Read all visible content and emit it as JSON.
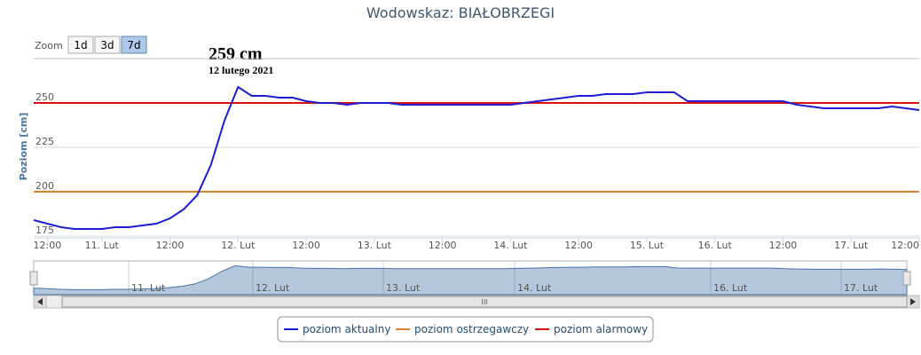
{
  "chart_data": {
    "type": "line",
    "title": "Wodowskaz: BIAŁOBRZEGI",
    "zoom": {
      "label": "Zoom",
      "buttons": [
        "1d",
        "3d",
        "7d"
      ],
      "selected": "7d"
    },
    "annotation": {
      "value_label": "259 cm",
      "date": "12 lutego 2021"
    },
    "y_label": "Poziom [cm]",
    "ylim": [
      174,
      275
    ],
    "yticks": [
      175,
      200,
      225,
      250
    ],
    "grid": true,
    "categories": [
      null,
      "12:00",
      null,
      null,
      null,
      "11. Lut",
      null,
      null,
      null,
      null,
      "12:00",
      null,
      null,
      null,
      null,
      "12. Lut",
      null,
      null,
      null,
      null,
      "12:00",
      null,
      null,
      null,
      null,
      "13. Lut",
      null,
      null,
      null,
      null,
      "12:00",
      null,
      null,
      null,
      null,
      "14. Lut",
      null,
      null,
      null,
      null,
      "12:00",
      null,
      null,
      null,
      null,
      "15. Lut",
      null,
      null,
      null,
      null,
      "16. Lut",
      null,
      null,
      null,
      null,
      "12:00",
      null,
      null,
      null,
      null,
      "17. Lut",
      null,
      null,
      null,
      null,
      "12:00"
    ],
    "series": [
      {
        "name": "poziom aktualny",
        "color": "#1c1cd0",
        "values": [
          184,
          182,
          180,
          179,
          179,
          179,
          180,
          180,
          181,
          182,
          185,
          190,
          198,
          215,
          240,
          259,
          254,
          254,
          253,
          253,
          251,
          250,
          250,
          249,
          250,
          250,
          250,
          249,
          249,
          249,
          249,
          249,
          249,
          249,
          249,
          249,
          250,
          251,
          252,
          253,
          254,
          254,
          255,
          255,
          255,
          256,
          256,
          256,
          251,
          251,
          251,
          251,
          251,
          251,
          251,
          251,
          249,
          248,
          247,
          247,
          247,
          247,
          247,
          248,
          247,
          246
        ]
      }
    ],
    "thresholds": [
      {
        "name": "poziom ostrzegawczy",
        "color": "#d9822b",
        "value": 200
      },
      {
        "name": "poziom alarmowy",
        "color": "#e01010",
        "value": 250
      }
    ],
    "navigator": {
      "labels": [
        "11. Lut",
        "12. Lut",
        "13. Lut",
        "14. Lut",
        "16. Lut",
        "17. Lut"
      ],
      "scrollbar_label": "III"
    },
    "legend": "bottom"
  }
}
